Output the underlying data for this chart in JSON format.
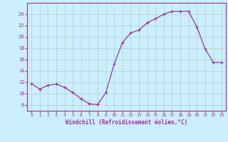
{
  "x": [
    0,
    1,
    2,
    3,
    4,
    5,
    6,
    7,
    8,
    9,
    10,
    11,
    12,
    13,
    14,
    15,
    16,
    17,
    18,
    19,
    20,
    21,
    22,
    23
  ],
  "y": [
    11.8,
    10.8,
    11.5,
    11.7,
    11.1,
    10.2,
    9.1,
    8.2,
    8.1,
    10.2,
    15.2,
    19.0,
    20.7,
    21.2,
    22.5,
    23.2,
    24.0,
    24.5,
    24.5,
    24.5,
    21.8,
    17.9,
    15.5,
    15.5
  ],
  "xlim": [
    -0.5,
    23.5
  ],
  "ylim": [
    7,
    26
  ],
  "yticks": [
    8,
    10,
    12,
    14,
    16,
    18,
    20,
    22,
    24
  ],
  "xticks": [
    0,
    1,
    2,
    3,
    4,
    5,
    6,
    7,
    8,
    9,
    10,
    11,
    12,
    13,
    14,
    15,
    16,
    17,
    18,
    19,
    20,
    21,
    22,
    23
  ],
  "line_color": "#993399",
  "marker_color": "#993399",
  "bg_color": "#cceeff",
  "grid_color": "#aaddcc",
  "xlabel": "Windchill (Refroidissement éolien,°C)",
  "font_color": "#993399"
}
